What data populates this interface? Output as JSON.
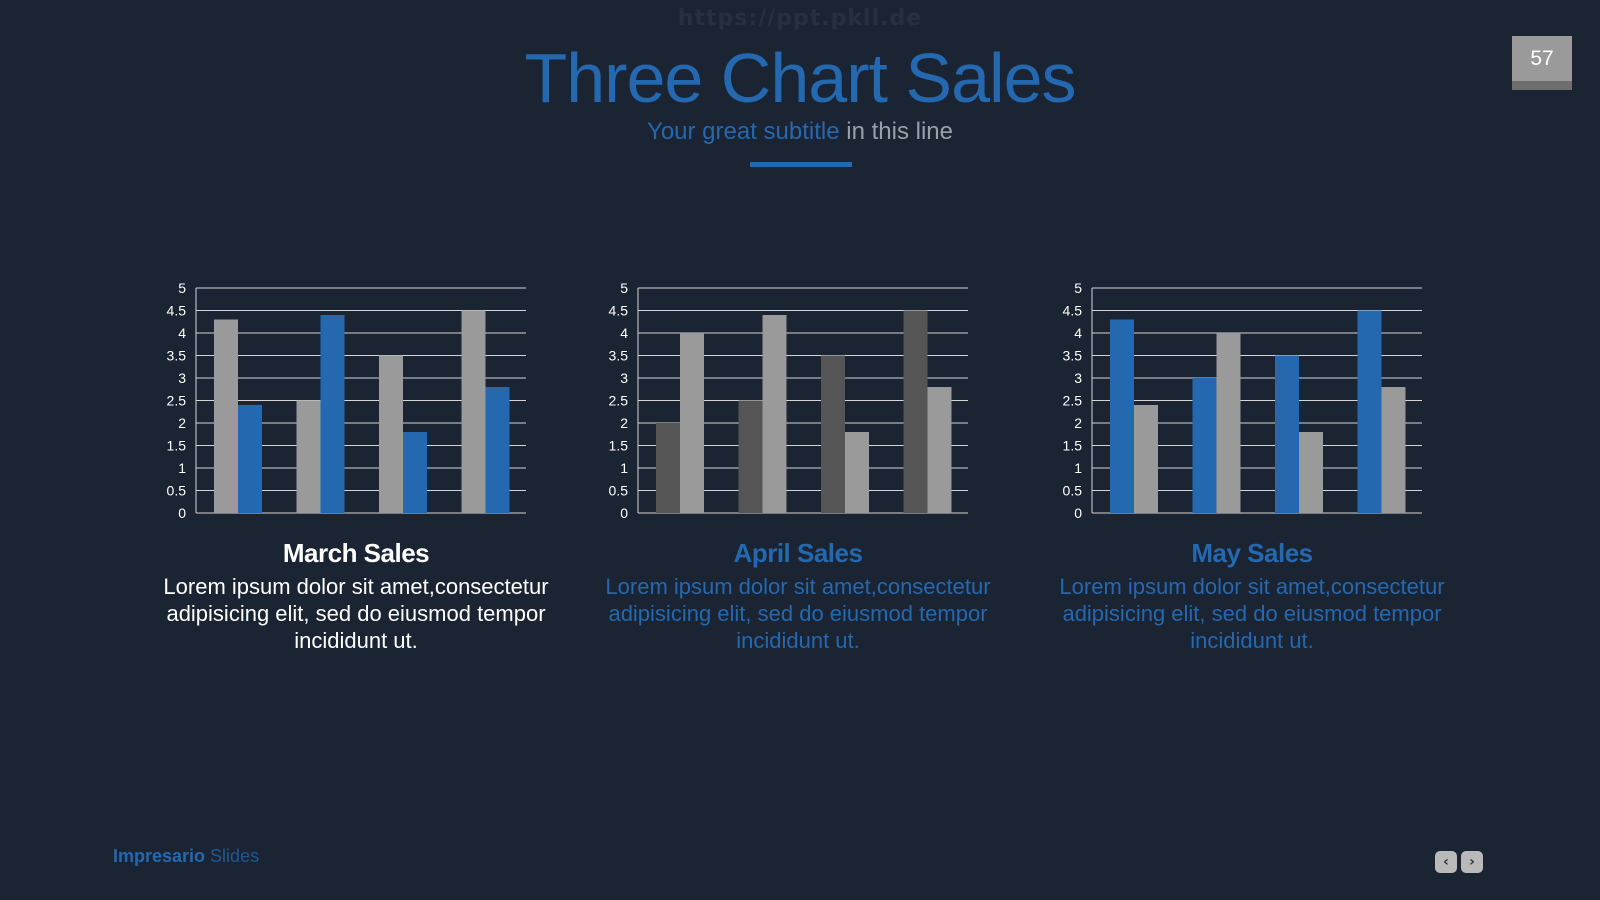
{
  "watermark": "https://ppt.pkll.de",
  "page": {
    "title": "Three Chart Sales",
    "subtitle_highlight": "Your great subtitle",
    "subtitle_rest": " in this line",
    "page_number": "57"
  },
  "footer": {
    "brand_bold": "Impresario",
    "brand_light": " Slides",
    "prev_icon": "chevron-left-icon",
    "next_icon": "chevron-right-icon"
  },
  "colors": {
    "background": "#1b2433",
    "accent": "#2468b0",
    "bar_gray": "#9a9a9a",
    "bar_dark": "#555555",
    "white": "#ffffff"
  },
  "chart_data": [
    {
      "type": "bar",
      "title": "March Sales",
      "description": "Lorem ipsum dolor sit amet,consectetur adipisicing elit, sed do eiusmod tempor incididunt ut.",
      "title_color": "#ffffff",
      "description_color": "#ffffff",
      "categories": [
        "",
        "",
        "",
        ""
      ],
      "series": [
        {
          "values": [
            4.3,
            2.5,
            3.5,
            4.5
          ],
          "color": "#9a9a9a"
        },
        {
          "values": [
            2.4,
            4.4,
            1.8,
            2.8
          ],
          "color": "#2468b0"
        }
      ],
      "ylim": [
        0,
        5
      ],
      "yticks": [
        "0",
        "0.5",
        "1",
        "1.5",
        "2",
        "2.5",
        "3",
        "3.5",
        "4",
        "4.5",
        "5"
      ],
      "grid": true,
      "legend": "none"
    },
    {
      "type": "bar",
      "title": "April Sales",
      "description": "Lorem ipsum dolor sit amet,consectetur adipisicing elit, sed do eiusmod tempor incididunt ut.",
      "title_color": "#2468b0",
      "description_color": "#2468b0",
      "categories": [
        "",
        "",
        "",
        ""
      ],
      "series": [
        {
          "values": [
            2,
            2.5,
            3.5,
            4.5
          ],
          "color": "#555555"
        },
        {
          "values": [
            4,
            4.4,
            1.8,
            2.8
          ],
          "color": "#9a9a9a"
        }
      ],
      "ylim": [
        0,
        5
      ],
      "yticks": [
        "0",
        "0.5",
        "1",
        "1.5",
        "2",
        "2.5",
        "3",
        "3.5",
        "4",
        "4.5",
        "5"
      ],
      "grid": true,
      "legend": "none"
    },
    {
      "type": "bar",
      "title": "May Sales",
      "description": "Lorem ipsum dolor sit amet,consectetur adipisicing elit, sed do eiusmod tempor incididunt ut.",
      "title_color": "#2468b0",
      "description_color": "#2468b0",
      "categories": [
        "",
        "",
        "",
        ""
      ],
      "series": [
        {
          "values": [
            4.3,
            3,
            3.5,
            4.5
          ],
          "color": "#2468b0"
        },
        {
          "values": [
            2.4,
            4,
            1.8,
            2.8
          ],
          "color": "#9a9a9a"
        }
      ],
      "ylim": [
        0,
        5
      ],
      "yticks": [
        "0",
        "0.5",
        "1",
        "1.5",
        "2",
        "2.5",
        "3",
        "3.5",
        "4",
        "4.5",
        "5"
      ],
      "grid": true,
      "legend": "none"
    }
  ]
}
